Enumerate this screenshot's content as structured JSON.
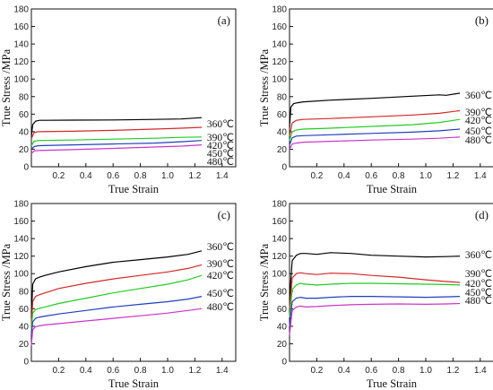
{
  "chart_data": [
    {
      "type": "line",
      "panel_label": "(a)",
      "xlabel": "True Strain",
      "ylabel": "True Stress /MPa",
      "xlim": [
        0,
        1.5
      ],
      "ylim": [
        0,
        180
      ],
      "xticks": [
        "0.2",
        "0.4",
        "0.6",
        "0.8",
        "1.0",
        "1.2",
        "1.4"
      ],
      "yticks": [
        "0",
        "20",
        "40",
        "60",
        "80",
        "100",
        "120",
        "140",
        "160",
        "180"
      ],
      "series": [
        {
          "name": "360℃",
          "color": "#000000",
          "x": [
            0,
            0.01,
            0.03,
            0.06,
            0.1,
            0.3,
            0.6,
            0.9,
            1.1,
            1.25
          ],
          "y": [
            35,
            48,
            52,
            53,
            53,
            53.2,
            53.4,
            54,
            54.5,
            56
          ]
        },
        {
          "name": "390℃",
          "color": "#d62728",
          "x": [
            0,
            0.02,
            0.05,
            0.3,
            0.6,
            0.9,
            1.1,
            1.25
          ],
          "y": [
            32,
            39,
            40,
            40.5,
            41.5,
            43,
            44,
            45
          ]
        },
        {
          "name": "420℃",
          "color": "#22cc22",
          "x": [
            0,
            0.02,
            0.05,
            0.3,
            0.6,
            0.9,
            1.1,
            1.25
          ],
          "y": [
            24,
            29,
            30,
            30.5,
            31.5,
            32.5,
            33.5,
            34
          ]
        },
        {
          "name": "450℃",
          "color": "#1f3fbf",
          "x": [
            0,
            0.02,
            0.05,
            0.3,
            0.6,
            0.9,
            1.1,
            1.25
          ],
          "y": [
            20,
            23,
            24,
            25,
            26,
            27,
            28.5,
            30
          ]
        },
        {
          "name": "480℃",
          "color": "#cc33cc",
          "x": [
            0,
            0.02,
            0.05,
            0.3,
            0.6,
            0.9,
            1.1,
            1.25
          ],
          "y": [
            15,
            18,
            18.5,
            19.5,
            21,
            22.5,
            23.5,
            25
          ]
        }
      ]
    },
    {
      "type": "line",
      "panel_label": "(b)",
      "xlabel": "True Strain",
      "ylabel": "True Stress /MPa",
      "xlim": [
        0,
        1.5
      ],
      "ylim": [
        0,
        180
      ],
      "xticks": [
        "0.2",
        "0.4",
        "0.6",
        "0.8",
        "1.0",
        "1.2",
        "1.4"
      ],
      "yticks": [
        "0",
        "20",
        "40",
        "60",
        "80",
        "100",
        "120",
        "140",
        "160",
        "180"
      ],
      "series": [
        {
          "name": "360℃",
          "color": "#000000",
          "x": [
            0,
            0.01,
            0.03,
            0.06,
            0.1,
            0.3,
            0.6,
            0.9,
            1.1,
            1.15,
            1.25
          ],
          "y": [
            45,
            68,
            72,
            73,
            74,
            76,
            78,
            80.5,
            82,
            81.5,
            84
          ]
        },
        {
          "name": "390℃",
          "color": "#d62728",
          "x": [
            0,
            0.02,
            0.05,
            0.1,
            0.3,
            0.6,
            0.9,
            1.1,
            1.25
          ],
          "y": [
            35,
            50,
            53,
            54,
            55,
            57,
            59,
            61,
            64
          ]
        },
        {
          "name": "420℃",
          "color": "#22cc22",
          "x": [
            0,
            0.02,
            0.05,
            0.1,
            0.3,
            0.6,
            0.9,
            1.1,
            1.25
          ],
          "y": [
            30,
            40,
            42,
            43,
            44,
            46,
            48,
            50.5,
            54
          ]
        },
        {
          "name": "450℃",
          "color": "#1f3fbf",
          "x": [
            0,
            0.02,
            0.05,
            0.1,
            0.3,
            0.6,
            0.9,
            1.1,
            1.25
          ],
          "y": [
            25,
            33,
            35,
            35.5,
            36.5,
            38,
            39.5,
            41,
            43
          ]
        },
        {
          "name": "480℃",
          "color": "#cc33cc",
          "x": [
            0,
            0.02,
            0.05,
            0.1,
            0.3,
            0.6,
            0.9,
            1.1,
            1.25
          ],
          "y": [
            20,
            26,
            27,
            28,
            29,
            30.5,
            31.5,
            32.5,
            34
          ]
        }
      ]
    },
    {
      "type": "line",
      "panel_label": "(c)",
      "xlabel": "True Strain",
      "ylabel": "True Stress /MPa",
      "xlim": [
        0,
        1.5
      ],
      "ylim": [
        0,
        180
      ],
      "xticks": [
        "0.2",
        "0.4",
        "0.6",
        "0.8",
        "1.0",
        "1.2",
        "1.4"
      ],
      "yticks": [
        "0",
        "20",
        "40",
        "60",
        "80",
        "100",
        "120",
        "140",
        "160",
        "180"
      ],
      "series": [
        {
          "name": "360℃",
          "color": "#000000",
          "x": [
            0,
            0.01,
            0.03,
            0.06,
            0.1,
            0.2,
            0.4,
            0.6,
            0.8,
            1.0,
            1.15,
            1.25
          ],
          "y": [
            50,
            88,
            94,
            96,
            98,
            102,
            108,
            113,
            116,
            119,
            122,
            126
          ]
        },
        {
          "name": "390℃",
          "color": "#d62728",
          "x": [
            0,
            0.01,
            0.03,
            0.06,
            0.1,
            0.2,
            0.4,
            0.6,
            0.8,
            1.0,
            1.15,
            1.25
          ],
          "y": [
            40,
            68,
            74,
            76,
            78,
            83,
            89,
            94,
            98,
            102,
            106,
            110
          ]
        },
        {
          "name": "420℃",
          "color": "#22cc22",
          "x": [
            0,
            0.01,
            0.03,
            0.06,
            0.1,
            0.2,
            0.4,
            0.6,
            0.8,
            1.0,
            1.15,
            1.25
          ],
          "y": [
            35,
            55,
            59,
            60.5,
            62,
            66,
            72,
            78,
            83,
            88,
            93,
            98
          ]
        },
        {
          "name": "450℃",
          "color": "#1f3fbf",
          "x": [
            0,
            0.01,
            0.03,
            0.06,
            0.1,
            0.2,
            0.4,
            0.6,
            0.8,
            1.0,
            1.15,
            1.25
          ],
          "y": [
            30,
            45,
            49,
            50.5,
            51.5,
            54,
            58,
            62,
            65,
            68,
            71,
            74
          ]
        },
        {
          "name": "480℃",
          "color": "#cc33cc",
          "x": [
            0,
            0.01,
            0.03,
            0.06,
            0.1,
            0.2,
            0.4,
            0.6,
            0.8,
            1.0,
            1.15,
            1.25
          ],
          "y": [
            18,
            36,
            39.5,
            40.5,
            41.5,
            43,
            46,
            49,
            52,
            55,
            58,
            60
          ]
        }
      ]
    },
    {
      "type": "line",
      "panel_label": "(d)",
      "xlabel": "True Strain",
      "ylabel": "True Stress /MPa",
      "xlim": [
        0,
        1.5
      ],
      "ylim": [
        0,
        180
      ],
      "xticks": [
        "0.2",
        "0.4",
        "0.6",
        "0.8",
        "1.0",
        "1.2",
        "1.4"
      ],
      "yticks": [
        "0",
        "20",
        "40",
        "60",
        "80",
        "100",
        "120",
        "140",
        "160",
        "180"
      ],
      "series": [
        {
          "name": "360℃",
          "color": "#000000",
          "x": [
            0,
            0.02,
            0.05,
            0.08,
            0.12,
            0.2,
            0.3,
            0.45,
            0.6,
            0.8,
            1.0,
            1.15,
            1.25
          ],
          "y": [
            70,
            115,
            121,
            123,
            123,
            122,
            124,
            123,
            121,
            120,
            119,
            119.5,
            120
          ]
        },
        {
          "name": "390℃",
          "color": "#d62728",
          "x": [
            0,
            0.02,
            0.05,
            0.08,
            0.12,
            0.2,
            0.3,
            0.45,
            0.6,
            0.8,
            1.0,
            1.15,
            1.25
          ],
          "y": [
            60,
            95,
            100,
            101,
            100,
            99,
            100.5,
            100,
            98,
            96,
            93,
            91,
            90
          ]
        },
        {
          "name": "420℃",
          "color": "#22cc22",
          "x": [
            0,
            0.02,
            0.05,
            0.08,
            0.12,
            0.2,
            0.3,
            0.45,
            0.6,
            0.8,
            1.0,
            1.15,
            1.25
          ],
          "y": [
            50,
            82,
            87,
            89,
            88,
            87,
            88,
            89,
            89,
            88.5,
            88,
            87.5,
            87
          ]
        },
        {
          "name": "450℃",
          "color": "#1f3fbf",
          "x": [
            0,
            0.02,
            0.05,
            0.08,
            0.12,
            0.2,
            0.3,
            0.45,
            0.6,
            0.8,
            1.0,
            1.15,
            1.25
          ],
          "y": [
            40,
            68,
            72,
            73,
            72,
            72,
            73,
            74,
            74,
            73.5,
            73,
            73.5,
            74
          ]
        },
        {
          "name": "480℃",
          "color": "#cc33cc",
          "x": [
            0,
            0.02,
            0.05,
            0.08,
            0.12,
            0.2,
            0.3,
            0.45,
            0.6,
            0.8,
            1.0,
            1.15,
            1.25
          ],
          "y": [
            30,
            58,
            62,
            63,
            62,
            62.5,
            63.5,
            64.5,
            65,
            65.5,
            65,
            65.5,
            66
          ]
        }
      ]
    }
  ]
}
